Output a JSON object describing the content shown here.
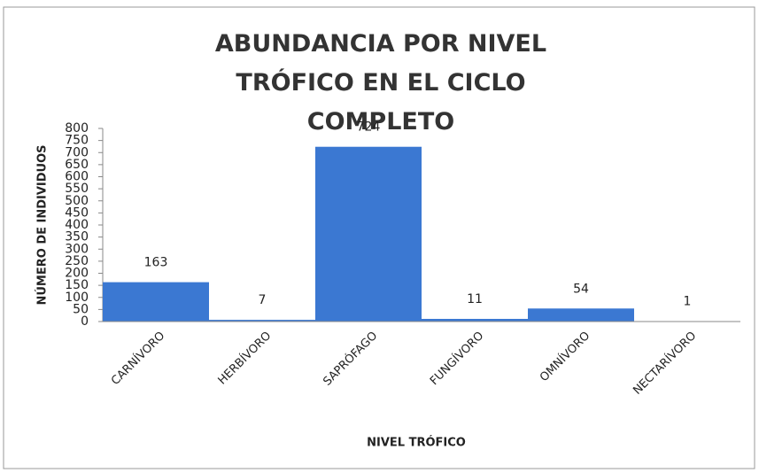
{
  "chart_data": {
    "type": "bar",
    "title": "ABUNDANCIA POR NIVEL TRÓFICO EN EL CICLO COMPLETO",
    "x_label": "NIVEL TRÓFICO",
    "y_label": "NÚMERO DE INDIVIDUOS",
    "categories": [
      "CARNÍVORO",
      "HERBÍVORO",
      "SAPRÓFAGO",
      "FUNGÍVORO",
      "OMNÍVORO",
      "NECTARÍVORO"
    ],
    "values": [
      163,
      7,
      724,
      11,
      54,
      1
    ],
    "color": "#3b78d2",
    "ylim": [
      0,
      800
    ],
    "yticks": [
      0,
      50,
      100,
      150,
      200,
      250,
      300,
      350,
      400,
      450,
      500,
      550,
      600,
      650,
      700,
      750,
      800
    ]
  }
}
